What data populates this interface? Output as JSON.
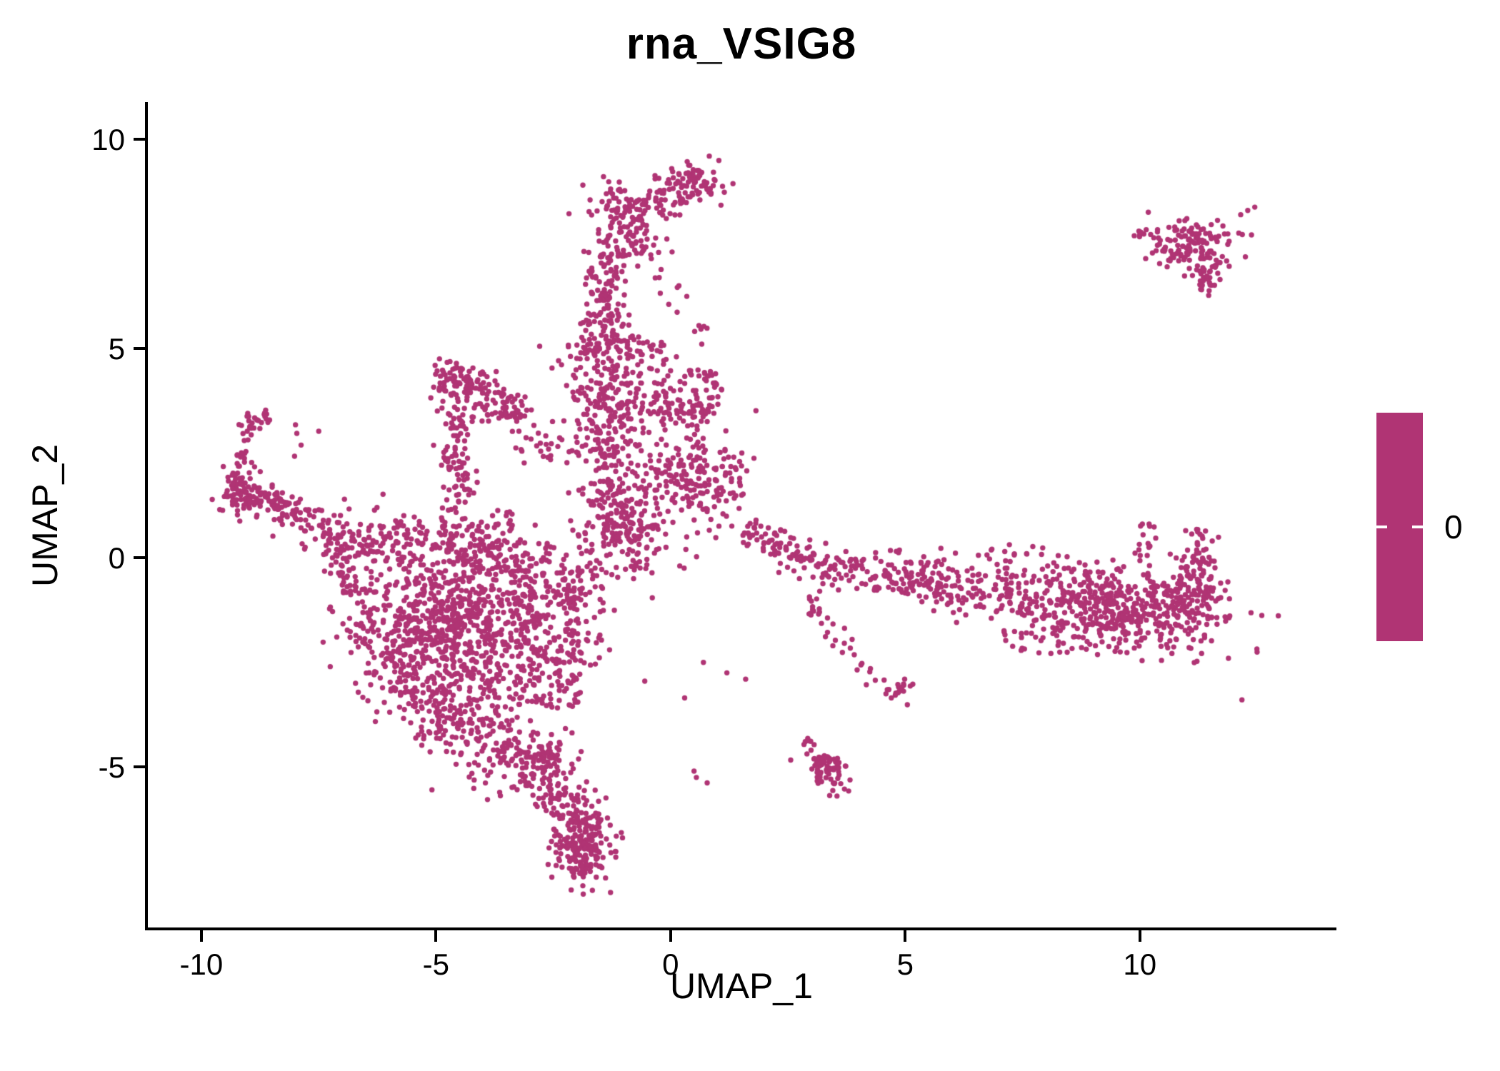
{
  "page": {
    "background": "#FFFFFF",
    "axis_color": "#000000"
  },
  "chart_data": {
    "type": "scatter",
    "title": "rna_VSIG8",
    "xlabel": "UMAP_1",
    "ylabel": "UMAP_2",
    "xlim": [
      -11.17,
      14.19
    ],
    "ylim": [
      -8.87,
      10.89
    ],
    "x_ticks": [
      "-10",
      "-5",
      "0",
      "5",
      "10"
    ],
    "x_tick_values": [
      -10,
      -5,
      0,
      5,
      10
    ],
    "y_ticks": [
      "-5",
      "0",
      "5",
      "10"
    ],
    "y_tick_values": [
      -5,
      0,
      5,
      10
    ],
    "grid": false,
    "legend_position": "right",
    "point_color": "#B03474",
    "point_radius_px": 3.7,
    "legend": {
      "label": "0",
      "color": "#B03474",
      "tick_color": "#FFFFFF"
    },
    "clusters": [
      {
        "name": "top-blob",
        "type": "gauss",
        "cx": 0.55,
        "cy": 9.05,
        "sx": 0.3,
        "sy": 0.25,
        "n": 70
      },
      {
        "name": "head-neck",
        "type": "path",
        "pts": [
          [
            0.3,
            8.9
          ],
          [
            -0.3,
            8.5
          ]
        ],
        "w": 0.18,
        "n": 18
      },
      {
        "name": "top-stream-head",
        "type": "gauss",
        "cx": -0.95,
        "cy": 8.3,
        "sx": 0.4,
        "sy": 0.35,
        "n": 110
      },
      {
        "name": "top-stream",
        "type": "path",
        "pts": [
          [
            -0.85,
            7.9
          ],
          [
            -1.3,
            6.9
          ],
          [
            -1.5,
            5.9
          ],
          [
            -1.45,
            5.1
          ]
        ],
        "w": 0.3,
        "n": 170
      },
      {
        "name": "top-stream-scatter",
        "type": "uniform",
        "x0": -0.45,
        "x1": 0.35,
        "y0": 5.6,
        "y1": 8.8,
        "n": 22
      },
      {
        "name": "mid-column",
        "type": "path",
        "pts": [
          [
            -1.45,
            5.2
          ],
          [
            -1.35,
            4.2
          ],
          [
            -1.3,
            3.2
          ],
          [
            -1.2,
            2.2
          ],
          [
            -1.1,
            1.2
          ],
          [
            -0.9,
            0.4
          ]
        ],
        "w": 0.45,
        "n": 420
      },
      {
        "name": "column-right-wing",
        "type": "uniform",
        "x0": -0.95,
        "x1": 0.1,
        "y0": 3.3,
        "y1": 5.2,
        "n": 55
      },
      {
        "name": "right-mid-blob",
        "type": "gauss",
        "cx": 0.55,
        "cy": 3.75,
        "sx": 0.38,
        "sy": 0.5,
        "n": 110
      },
      {
        "name": "pair-upper",
        "type": "gauss",
        "cx": 0.55,
        "cy": 5.4,
        "sx": 0.1,
        "sy": 0.08,
        "n": 5
      },
      {
        "name": "right-low-blob",
        "type": "gauss",
        "cx": 0.75,
        "cy": 1.8,
        "sx": 0.5,
        "sy": 0.45,
        "n": 130
      },
      {
        "name": "blob-bridge",
        "type": "uniform",
        "x0": -0.4,
        "x1": 0.4,
        "y0": 1.3,
        "y1": 2.4,
        "n": 30
      },
      {
        "name": "junction",
        "type": "gauss",
        "cx": -1.0,
        "cy": 0.3,
        "sx": 0.7,
        "sy": 0.5,
        "n": 120
      },
      {
        "name": "tri-apex",
        "type": "gauss",
        "cx": -4.5,
        "cy": 4.3,
        "sx": 0.28,
        "sy": 0.18,
        "n": 60,
        "angle": -20
      },
      {
        "name": "tri-right-edge",
        "type": "path",
        "pts": [
          [
            -4.15,
            4.35
          ],
          [
            -3.6,
            3.9
          ],
          [
            -3.15,
            3.35
          ]
        ],
        "w": 0.14,
        "n": 45
      },
      {
        "name": "tri-left-edge",
        "type": "path",
        "pts": [
          [
            -4.75,
            4.1
          ],
          [
            -4.65,
            3.5
          ],
          [
            -4.6,
            2.9
          ]
        ],
        "w": 0.16,
        "n": 40
      },
      {
        "name": "tri-interior",
        "type": "uniform",
        "x0": -4.5,
        "x1": -3.5,
        "y0": 3.2,
        "y1": 4.1,
        "n": 35
      },
      {
        "name": "tri-hline",
        "type": "path",
        "pts": [
          [
            -3.95,
            3.45
          ],
          [
            -3.3,
            3.4
          ]
        ],
        "w": 0.1,
        "n": 14
      },
      {
        "name": "tri-stem",
        "type": "path",
        "pts": [
          [
            -4.62,
            2.8
          ],
          [
            -4.5,
            2.0
          ],
          [
            -4.35,
            1.3
          ]
        ],
        "w": 0.18,
        "n": 55
      },
      {
        "name": "tri-col-bridge",
        "type": "uniform",
        "x0": -3.4,
        "x1": -2.0,
        "y0": 2.2,
        "y1": 3.3,
        "n": 28
      },
      {
        "name": "stem-main-bridge",
        "type": "uniform",
        "x0": -4.9,
        "x1": -3.3,
        "y0": 0.5,
        "y1": 1.25,
        "n": 26
      },
      {
        "name": "arm-hook-top",
        "type": "path",
        "pts": [
          [
            -8.55,
            3.35
          ],
          [
            -9.0,
            3.25
          ],
          [
            -9.15,
            2.8
          ]
        ],
        "w": 0.12,
        "n": 30
      },
      {
        "name": "arm-vert",
        "type": "path",
        "pts": [
          [
            -9.15,
            2.6
          ],
          [
            -9.2,
            2.0
          ],
          [
            -9.25,
            1.6
          ]
        ],
        "w": 0.13,
        "n": 35
      },
      {
        "name": "arm-elbow",
        "type": "gauss",
        "cx": -9.0,
        "cy": 1.4,
        "sx": 0.35,
        "sy": 0.22,
        "n": 90
      },
      {
        "name": "arm-diag",
        "type": "path",
        "pts": [
          [
            -8.5,
            1.35
          ],
          [
            -7.8,
            0.9
          ],
          [
            -7.1,
            0.45
          ],
          [
            -6.5,
            0.2
          ]
        ],
        "w": 0.25,
        "n": 130
      },
      {
        "name": "arm-outliers",
        "type": "uniform",
        "x0": -8.2,
        "x1": -7.4,
        "y0": 2.4,
        "y1": 3.2,
        "n": 5
      },
      {
        "name": "main-top-band",
        "type": "path",
        "pts": [
          [
            -6.6,
            0.3
          ],
          [
            -5.5,
            0.45
          ],
          [
            -4.3,
            0.4
          ],
          [
            -3.3,
            0.1
          ],
          [
            -2.6,
            -0.2
          ]
        ],
        "w": 0.35,
        "n": 220
      },
      {
        "name": "main-core",
        "type": "gauss",
        "cx": -4.7,
        "cy": -1.7,
        "sx": 0.95,
        "sy": 1.05,
        "n": 820
      },
      {
        "name": "main-left-edge",
        "type": "path",
        "pts": [
          [
            -7.2,
            0.2
          ],
          [
            -6.6,
            -1.0
          ],
          [
            -6.0,
            -2.2
          ],
          [
            -5.4,
            -3.3
          ],
          [
            -4.9,
            -4.1
          ]
        ],
        "w": 0.3,
        "n": 170
      },
      {
        "name": "main-right-ext",
        "type": "uniform",
        "x0": -3.3,
        "x1": -1.9,
        "y0": -3.6,
        "y1": -0.3,
        "n": 230
      },
      {
        "name": "main-bottom-taper",
        "type": "path",
        "pts": [
          [
            -4.6,
            -3.6
          ],
          [
            -3.9,
            -4.3
          ],
          [
            -3.2,
            -4.8
          ],
          [
            -2.8,
            -5.2
          ]
        ],
        "w": 0.45,
        "n": 170
      },
      {
        "name": "main-right-fringe",
        "type": "uniform",
        "x0": -2.3,
        "x1": -1.4,
        "y0": -2.6,
        "y1": -0.2,
        "n": 60
      },
      {
        "name": "bottom-stream",
        "type": "path",
        "pts": [
          [
            -2.75,
            -4.5
          ],
          [
            -2.5,
            -5.2
          ],
          [
            -2.2,
            -5.9
          ],
          [
            -2.0,
            -6.4
          ]
        ],
        "w": 0.3,
        "n": 130
      },
      {
        "name": "bottom-blob",
        "type": "gauss",
        "cx": -1.85,
        "cy": -6.8,
        "sx": 0.33,
        "sy": 0.42,
        "n": 200
      },
      {
        "name": "bottom-tip",
        "type": "path",
        "pts": [
          [
            -1.95,
            -7.3
          ],
          [
            -1.85,
            -7.6
          ]
        ],
        "w": 0.12,
        "n": 12
      },
      {
        "name": "band-start",
        "type": "path",
        "pts": [
          [
            1.55,
            0.6
          ],
          [
            2.1,
            0.45
          ],
          [
            2.6,
            0.2
          ]
        ],
        "w": 0.22,
        "n": 55
      },
      {
        "name": "band-dip",
        "type": "path",
        "pts": [
          [
            2.6,
            0.15
          ],
          [
            3.1,
            -0.2
          ],
          [
            3.7,
            -0.35
          ],
          [
            4.4,
            -0.3
          ]
        ],
        "w": 0.25,
        "n": 90
      },
      {
        "name": "band-mid",
        "type": "path",
        "pts": [
          [
            4.4,
            -0.4
          ],
          [
            5.4,
            -0.6
          ],
          [
            6.4,
            -0.75
          ],
          [
            7.3,
            -0.8
          ]
        ],
        "w": 0.3,
        "n": 170
      },
      {
        "name": "band-right-mass",
        "type": "gauss",
        "cx": 9.3,
        "cy": -1.15,
        "sx": 1.15,
        "sy": 0.5,
        "n": 520,
        "angle": -8
      },
      {
        "name": "band-right-edge",
        "type": "gauss",
        "cx": 11.15,
        "cy": -0.9,
        "sx": 0.3,
        "sy": 0.55,
        "n": 120
      },
      {
        "name": "right-upturn",
        "type": "path",
        "pts": [
          [
            11.3,
            -0.3
          ],
          [
            11.35,
            0.3
          ],
          [
            11.3,
            0.75
          ]
        ],
        "w": 0.15,
        "n": 30
      },
      {
        "name": "up-stream",
        "type": "path",
        "pts": [
          [
            10.05,
            0.05
          ],
          [
            10.15,
            0.55
          ],
          [
            10.1,
            1.0
          ]
        ],
        "w": 0.12,
        "n": 14
      },
      {
        "name": "band-upper-scatter",
        "type": "uniform",
        "x0": 4.6,
        "x1": 8.0,
        "y0": -0.2,
        "y1": 0.3,
        "n": 20
      },
      {
        "name": "band-below-scatter",
        "type": "uniform",
        "x0": 7.0,
        "x1": 11.0,
        "y0": -2.3,
        "y1": -1.7,
        "n": 40
      },
      {
        "name": "diag-chain",
        "type": "path",
        "pts": [
          [
            2.9,
            -0.9
          ],
          [
            3.3,
            -1.5
          ],
          [
            3.6,
            -2.1
          ],
          [
            4.0,
            -2.6
          ],
          [
            4.5,
            -3.0
          ],
          [
            5.0,
            -3.2
          ]
        ],
        "w": 0.12,
        "n": 42
      },
      {
        "name": "chain-clump",
        "type": "gauss",
        "cx": 4.95,
        "cy": -3.2,
        "sx": 0.15,
        "sy": 0.12,
        "n": 12
      },
      {
        "name": "small-cluster",
        "type": "gauss",
        "cx": 3.3,
        "cy": -5.05,
        "sx": 0.22,
        "sy": 0.42,
        "n": 75,
        "angle": 25
      },
      {
        "name": "iso-pair",
        "type": "points",
        "pts": [
          [
            0.55,
            -5.25
          ],
          [
            0.78,
            -5.38
          ],
          [
            0.5,
            -5.1
          ]
        ]
      },
      {
        "name": "mid-sparse",
        "type": "points",
        "pts": [
          [
            -0.55,
            -2.95
          ],
          [
            0.3,
            -3.35
          ],
          [
            1.2,
            -2.75
          ],
          [
            1.6,
            -2.9
          ],
          [
            0.7,
            -2.5
          ],
          [
            -1.3,
            -2.2
          ]
        ]
      },
      {
        "name": "tr-main",
        "type": "gauss",
        "cx": 11.2,
        "cy": 7.45,
        "sx": 0.42,
        "sy": 0.3,
        "n": 130
      },
      {
        "name": "tr-tail",
        "type": "path",
        "pts": [
          [
            11.3,
            6.95
          ],
          [
            11.4,
            6.55
          ],
          [
            11.45,
            6.25
          ]
        ],
        "w": 0.13,
        "n": 28
      },
      {
        "name": "tr-left-streak",
        "type": "path",
        "pts": [
          [
            9.85,
            7.75
          ],
          [
            10.45,
            7.7
          ]
        ],
        "w": 0.08,
        "n": 12
      },
      {
        "name": "tr-topright",
        "type": "points",
        "pts": [
          [
            12.3,
            8.3
          ],
          [
            12.45,
            8.38
          ],
          [
            12.15,
            8.2
          ]
        ]
      },
      {
        "name": "tr-scatter",
        "type": "uniform",
        "x0": 10.3,
        "x1": 10.7,
        "y0": 7.0,
        "y1": 7.6,
        "n": 8
      }
    ]
  }
}
